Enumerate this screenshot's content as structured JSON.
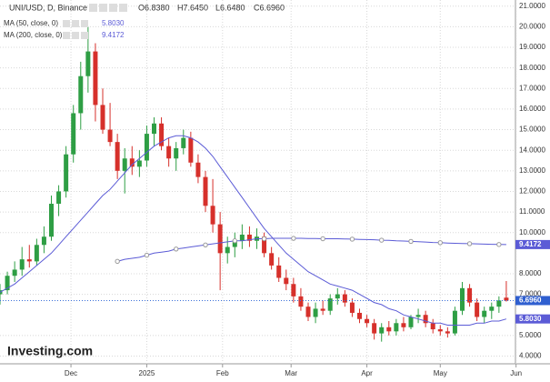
{
  "chart_data": {
    "type": "candlestick",
    "title": "UNI/USD, D, Binance",
    "ohlc_labels": [
      "O6.8380",
      "H7.6450",
      "L6.6480",
      "C6.6960"
    ],
    "watermark": "Investing.com",
    "up_color": "#2e9e44",
    "down_color": "#d6302b",
    "categories": [
      null,
      null,
      null,
      null,
      null,
      null,
      null,
      null,
      null,
      null,
      null,
      null,
      null,
      null,
      null,
      null,
      null,
      null,
      null,
      null,
      null,
      null,
      null,
      null,
      null,
      null,
      null,
      null,
      null,
      null,
      null,
      null,
      null,
      null,
      null,
      null,
      null,
      null,
      null,
      null,
      null,
      null,
      null,
      null,
      null,
      null,
      null,
      null,
      null,
      null,
      null,
      null,
      null,
      null,
      null,
      null,
      null,
      null,
      null,
      null,
      null,
      null,
      null,
      null,
      null,
      null,
      null,
      null,
      null,
      null
    ],
    "open": [
      7.0,
      7.2,
      7.9,
      8.2,
      8.7,
      8.6,
      9.4,
      9.8,
      11.4,
      12.0,
      13.8,
      15.8,
      17.6,
      18.8,
      16.2,
      15.0,
      14.4,
      13.0,
      13.6,
      13.2,
      13.5,
      14.8,
      15.3,
      14.2,
      13.6,
      14.1,
      14.6,
      13.4,
      12.7,
      11.3,
      10.4,
      9.0,
      9.3,
      9.6,
      9.9,
      9.6,
      9.8,
      9.0,
      8.4,
      7.8,
      7.5,
      6.9,
      6.4,
      5.9,
      6.3,
      6.2,
      6.8,
      7.0,
      6.6,
      6.1,
      5.8,
      5.6,
      5.1,
      5.4,
      5.2,
      5.6,
      5.4,
      5.9,
      6.0,
      5.6,
      5.3,
      5.2,
      5.1,
      6.2,
      7.3,
      6.6,
      5.9,
      6.2,
      6.4,
      6.838
    ],
    "high": [
      7.5,
      8.1,
      8.6,
      9.3,
      9.4,
      9.7,
      10.3,
      11.8,
      12.3,
      14.2,
      16.2,
      18.3,
      20.0,
      19.2,
      17.0,
      16.3,
      14.8,
      14.1,
      14.2,
      14.0,
      15.2,
      15.6,
      15.6,
      14.6,
      14.4,
      15.0,
      14.9,
      13.8,
      13.0,
      12.6,
      11.0,
      9.8,
      10.0,
      10.4,
      10.3,
      10.2,
      10.0,
      9.3,
      8.8,
      8.2,
      7.8,
      7.3,
      6.6,
      6.6,
      6.7,
      7.0,
      7.3,
      7.2,
      6.8,
      6.3,
      6.0,
      5.8,
      5.6,
      5.7,
      5.8,
      5.9,
      6.0,
      6.3,
      6.2,
      5.8,
      5.5,
      5.4,
      6.4,
      7.6,
      7.5,
      6.8,
      6.4,
      6.6,
      6.9,
      7.645
    ],
    "low": [
      6.5,
      7.0,
      7.6,
      7.9,
      8.3,
      8.4,
      9.0,
      9.6,
      10.8,
      11.7,
      13.4,
      15.0,
      16.8,
      15.4,
      14.8,
      14.2,
      12.6,
      11.9,
      12.8,
      12.7,
      13.2,
      14.2,
      14.0,
      13.2,
      13.0,
      13.8,
      13.2,
      12.4,
      11.0,
      10.0,
      7.2,
      8.5,
      8.8,
      9.2,
      9.3,
      9.2,
      8.8,
      8.2,
      7.6,
      7.2,
      6.6,
      6.2,
      5.7,
      5.6,
      6.0,
      6.0,
      6.5,
      6.4,
      5.9,
      5.6,
      5.4,
      4.8,
      4.7,
      5.0,
      5.0,
      5.2,
      5.3,
      5.6,
      5.4,
      5.1,
      5.0,
      4.9,
      5.0,
      6.0,
      6.4,
      5.7,
      5.6,
      5.8,
      6.1,
      6.648
    ],
    "close": [
      7.2,
      7.9,
      8.2,
      8.7,
      8.6,
      9.4,
      9.8,
      11.4,
      12.0,
      13.8,
      15.8,
      17.6,
      18.8,
      16.2,
      15.0,
      14.4,
      13.0,
      13.6,
      13.2,
      13.5,
      14.8,
      15.3,
      14.2,
      13.6,
      14.1,
      14.6,
      13.4,
      12.7,
      11.3,
      10.4,
      9.0,
      9.3,
      9.6,
      9.9,
      9.6,
      9.8,
      9.0,
      8.4,
      7.8,
      7.5,
      6.9,
      6.4,
      5.9,
      6.3,
      6.2,
      6.8,
      7.0,
      6.6,
      6.1,
      5.8,
      5.6,
      5.1,
      5.4,
      5.2,
      5.6,
      5.4,
      5.9,
      6.0,
      5.6,
      5.3,
      5.2,
      5.1,
      6.2,
      7.3,
      6.6,
      5.9,
      6.2,
      6.4,
      6.7,
      6.696
    ],
    "price_label": {
      "value": 6.696,
      "label": "6.6960"
    },
    "series": [
      {
        "name": "MA (50, close, 0)",
        "color": "#5b5bd6",
        "last_label": "5.8030",
        "values": [
          7.1,
          7.3,
          7.5,
          7.8,
          8.1,
          8.4,
          8.7,
          9.0,
          9.4,
          9.8,
          10.2,
          10.6,
          11.0,
          11.4,
          11.8,
          12.1,
          12.5,
          12.9,
          13.3,
          13.6,
          13.9,
          14.2,
          14.4,
          14.6,
          14.7,
          14.7,
          14.6,
          14.4,
          14.1,
          13.7,
          13.2,
          12.7,
          12.2,
          11.7,
          11.2,
          10.7,
          10.2,
          9.8,
          9.4,
          9.0,
          8.7,
          8.4,
          8.1,
          7.9,
          7.7,
          7.5,
          7.4,
          7.3,
          7.2,
          7.0,
          6.8,
          6.6,
          6.5,
          6.3,
          6.2,
          6.0,
          5.9,
          5.8,
          5.7,
          5.6,
          5.6,
          5.5,
          5.5,
          5.5,
          5.5,
          5.6,
          5.6,
          5.7,
          5.7,
          5.803
        ]
      },
      {
        "name": "MA (200, close, 0)",
        "color": "#5b5bd6",
        "last_label": "9.4172",
        "values": [
          null,
          null,
          null,
          null,
          null,
          null,
          null,
          null,
          null,
          null,
          null,
          null,
          null,
          null,
          null,
          null,
          8.6,
          8.7,
          8.75,
          8.8,
          8.9,
          9.0,
          9.05,
          9.1,
          9.2,
          9.25,
          9.3,
          9.35,
          9.4,
          9.45,
          9.5,
          9.55,
          9.6,
          9.6,
          9.65,
          9.7,
          9.7,
          9.72,
          9.72,
          9.72,
          9.72,
          9.72,
          9.71,
          9.71,
          9.7,
          9.7,
          9.7,
          9.69,
          9.68,
          9.67,
          9.66,
          9.65,
          9.63,
          9.62,
          9.6,
          9.59,
          9.57,
          9.56,
          9.54,
          9.52,
          9.51,
          9.49,
          9.48,
          9.47,
          9.46,
          9.45,
          9.44,
          9.43,
          9.42,
          9.4172
        ]
      }
    ],
    "xlim": [
      0,
      70
    ],
    "xticks": [
      {
        "value": 9.67,
        "label": "Dec"
      },
      {
        "value": 20,
        "label": "2025"
      },
      {
        "value": 30.33,
        "label": "Feb"
      },
      {
        "value": 39.67,
        "label": "Mar"
      },
      {
        "value": 50,
        "label": "Apr"
      },
      {
        "value": 60,
        "label": "May"
      },
      {
        "value": 70.33,
        "label": "Jun"
      }
    ],
    "ylim": [
      3.8,
      21.3
    ],
    "yticks": [
      {
        "value": 4,
        "label": "4.0000"
      },
      {
        "value": 5,
        "label": "5.0000"
      },
      {
        "value": 7,
        "label": "7.0000"
      },
      {
        "value": 8,
        "label": "8.0000"
      },
      {
        "value": 10,
        "label": "10.0000"
      },
      {
        "value": 11,
        "label": "11.0000"
      },
      {
        "value": 12,
        "label": "12.0000"
      },
      {
        "value": 13,
        "label": "13.0000"
      },
      {
        "value": 14,
        "label": "14.0000"
      },
      {
        "value": 15,
        "label": "15.0000"
      },
      {
        "value": 16,
        "label": "16.0000"
      },
      {
        "value": 17,
        "label": "17.0000"
      },
      {
        "value": 18,
        "label": "18.0000"
      },
      {
        "value": 19,
        "label": "19.0000"
      },
      {
        "value": 20,
        "label": "20.0000"
      },
      {
        "value": 21,
        "label": "21.0000"
      }
    ],
    "grid": true
  }
}
